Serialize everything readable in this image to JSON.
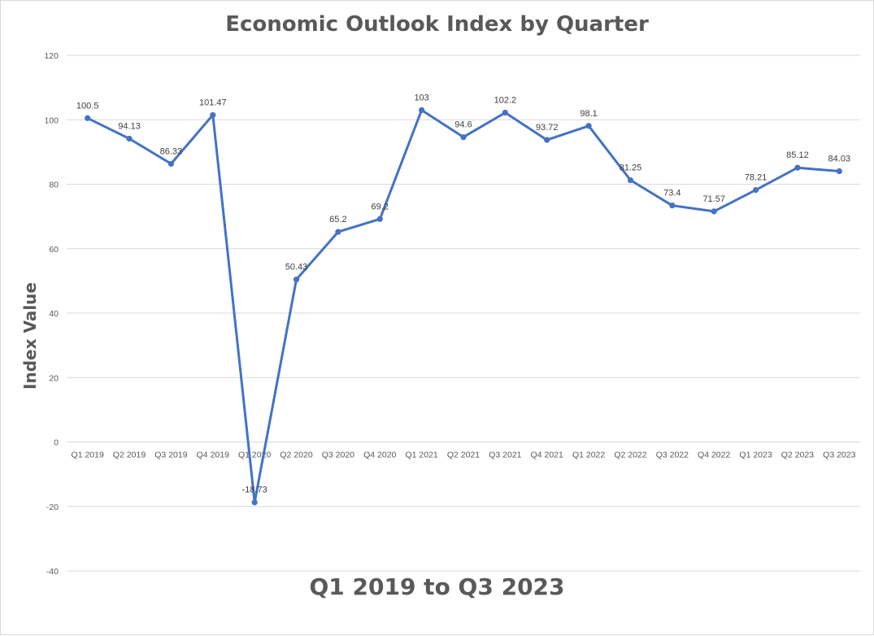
{
  "chart_data": {
    "type": "line",
    "title": "Economic Outlook Index by Quarter",
    "xlabel": "Q1 2019 to Q3 2023",
    "ylabel": "Index Value",
    "ylim": [
      -40,
      120
    ],
    "yticks": [
      -40,
      -20,
      0,
      20,
      40,
      60,
      80,
      100,
      120
    ],
    "grid": true,
    "legend": "none",
    "categories": [
      "Q1 2019",
      "Q2 2019",
      "Q3 2019",
      "Q4 2019",
      "Q1 2020",
      "Q2 2020",
      "Q3 2020",
      "Q4 2020",
      "Q1 2021",
      "Q2 2021",
      "Q3 2021",
      "Q4 2021",
      "Q1 2022",
      "Q2 2022",
      "Q3 2022",
      "Q4 2022",
      "Q1 2023",
      "Q2 2023",
      "Q3 2023"
    ],
    "series": [
      {
        "values": [
          100.5,
          94.13,
          86.33,
          101.47,
          -18.73,
          50.43,
          65.2,
          69.2,
          103,
          94.6,
          102.2,
          93.72,
          98.1,
          81.25,
          73.4,
          71.57,
          78.21,
          85.12,
          84.03
        ],
        "labels": [
          "100.5",
          "94.13",
          "86.33",
          "101.47",
          "-18.73",
          "50.43",
          "65.2",
          "69.2",
          "103",
          "94.6",
          "102.2",
          "93.72",
          "98.1",
          "81.25",
          "73.4",
          "71.57",
          "78.21",
          "85.12",
          "84.03"
        ],
        "color": "#4472c4"
      }
    ],
    "colors": {
      "line": "#4472c4",
      "grid": "#d9d9d9",
      "text": "#595959"
    }
  }
}
